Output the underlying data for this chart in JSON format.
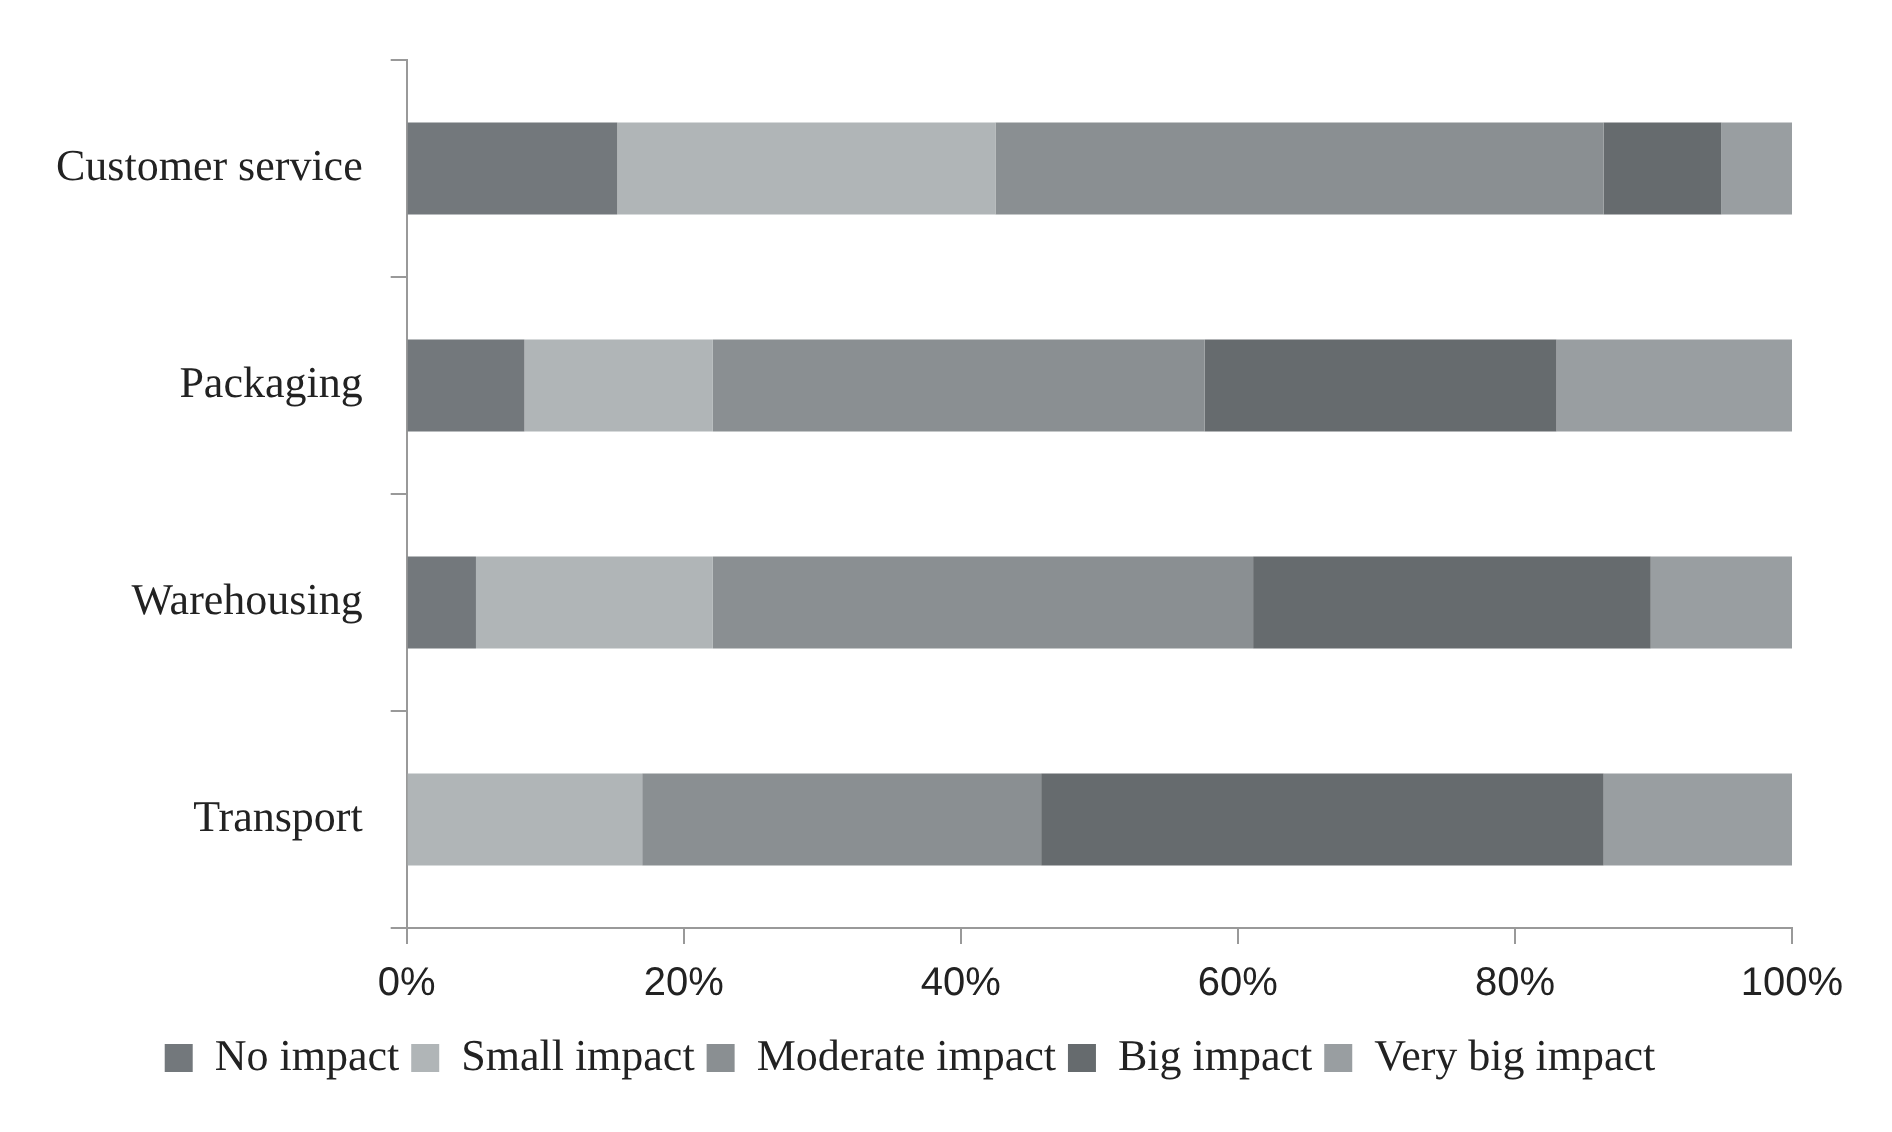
{
  "chart_data": {
    "type": "bar",
    "orientation": "horizontal",
    "stacked": true,
    "categories": [
      "Customer service",
      "Packaging",
      "Warehousing",
      "Transport"
    ],
    "series": [
      {
        "name": "No impact",
        "color": "#73787c",
        "values": [
          15.2,
          8.5,
          5.0,
          0
        ]
      },
      {
        "name": "Small impact",
        "color": "#b0b5b7",
        "values": [
          27.3,
          13.6,
          17.1,
          17.0
        ]
      },
      {
        "name": "Moderate impact",
        "color": "#8a8f92",
        "values": [
          43.9,
          35.5,
          39.0,
          28.8
        ]
      },
      {
        "name": "Big impact",
        "color": "#666b6e",
        "values": [
          8.5,
          25.4,
          28.7,
          40.6
        ]
      },
      {
        "name": "Very big impact",
        "color": "#999ea1",
        "values": [
          5.1,
          17.0,
          10.2,
          13.6
        ]
      }
    ],
    "xlim": [
      0,
      100
    ],
    "xticks": [
      {
        "value": 0,
        "label": "0%"
      },
      {
        "value": 20,
        "label": "20%"
      },
      {
        "value": 40,
        "label": "40%"
      },
      {
        "value": 60,
        "label": "60%"
      },
      {
        "value": 80,
        "label": "80%"
      },
      {
        "value": 100,
        "label": "100%"
      }
    ],
    "grid": false,
    "legend": "bottom"
  }
}
